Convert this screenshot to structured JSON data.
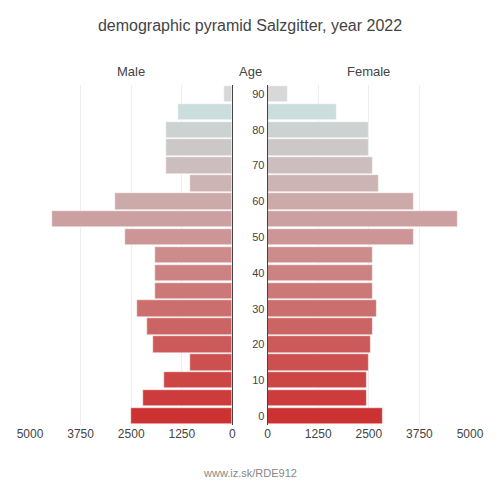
{
  "chart_data": {
    "type": "bar",
    "orientation": "horizontal",
    "title": "demographic pyramid Salzgitter, year 2022",
    "ylabel": "Age",
    "annotations": [
      "www.iz.sk/RDE912"
    ],
    "categories": [
      0,
      5,
      10,
      15,
      20,
      25,
      30,
      35,
      40,
      45,
      50,
      55,
      60,
      65,
      70,
      75,
      80,
      85,
      90
    ],
    "series": [
      {
        "name": "Male",
        "values": [
          2500,
          2200,
          1700,
          1050,
          1950,
          2100,
          2350,
          1900,
          1900,
          1900,
          2650,
          4450,
          2900,
          1050,
          1650,
          1650,
          1650,
          1350,
          200
        ]
      },
      {
        "name": "Female",
        "values": [
          2850,
          2450,
          2450,
          2500,
          2550,
          2600,
          2700,
          2600,
          2600,
          2600,
          3600,
          4700,
          3600,
          2750,
          2600,
          2500,
          2500,
          1700,
          500
        ]
      }
    ],
    "colors": [
      "#cd3232",
      "#cd3c3c",
      "#cd4646",
      "#cd5050",
      "#cd5a5a",
      "#cd6464",
      "#cd6e6e",
      "#cd7878",
      "#cd8282",
      "#cc8c8c",
      "#cc9696",
      "#cca0a0",
      "#ccaaaa",
      "#ccb4b4",
      "#ccbebe",
      "#ccc8c8",
      "#ccd2d2",
      "#ccdddd",
      "#d8d8d8"
    ],
    "xlim": [
      0,
      5000
    ],
    "xticks": [
      0,
      1250,
      2500,
      3750,
      5000
    ],
    "ylim": [
      -2.5,
      92.5
    ],
    "yticks": [
      0,
      10,
      20,
      30,
      40,
      50,
      60,
      70,
      80,
      90
    ],
    "grid": true
  }
}
